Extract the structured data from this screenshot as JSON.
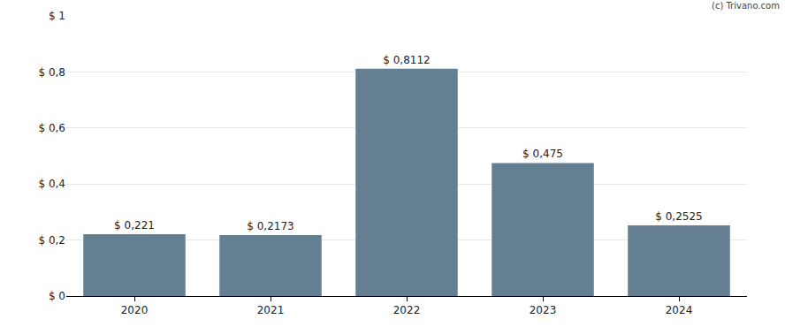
{
  "chart_data": {
    "type": "bar",
    "categories": [
      "2020",
      "2021",
      "2022",
      "2023",
      "2024"
    ],
    "values": [
      0.221,
      0.2173,
      0.8112,
      0.475,
      0.2525
    ],
    "value_labels": [
      "$ 0,221",
      "$ 0,2173",
      "$ 0,8112",
      "$ 0,475",
      "$ 0,2525"
    ],
    "data_labels": true,
    "color": "#647f91",
    "ylim": [
      0,
      1
    ],
    "yticks": [
      {
        "value": 0,
        "label": "$ 0"
      },
      {
        "value": 0.2,
        "label": "$ 0,2"
      },
      {
        "value": 0.4,
        "label": "$ 0,4"
      },
      {
        "value": 0.6,
        "label": "$ 0,6"
      },
      {
        "value": 0.8,
        "label": "$ 0,8"
      },
      {
        "value": 1,
        "label": "$ 1"
      }
    ],
    "grid": true,
    "annotations": [
      {
        "text": "(c) Trivano.com"
      }
    ]
  }
}
